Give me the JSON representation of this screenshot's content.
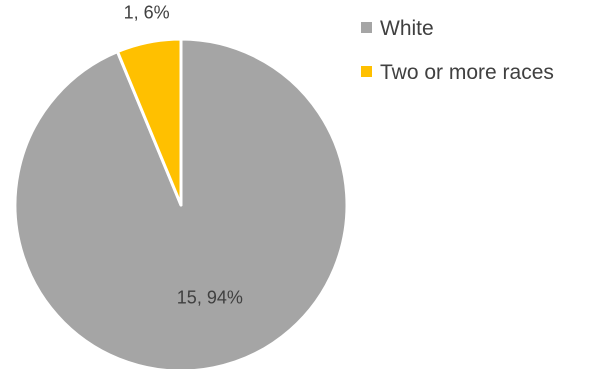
{
  "chart_data": {
    "type": "pie",
    "title": "",
    "legend_position": "right",
    "series": [
      {
        "values": [
          15,
          1
        ],
        "labels": [
          "White",
          "Two or more races"
        ],
        "percents": [
          94,
          6
        ],
        "colors": [
          "#a5a5a5",
          "#ffc000"
        ],
        "data_labels": [
          "15, 94%",
          "1, 6%"
        ]
      }
    ]
  }
}
